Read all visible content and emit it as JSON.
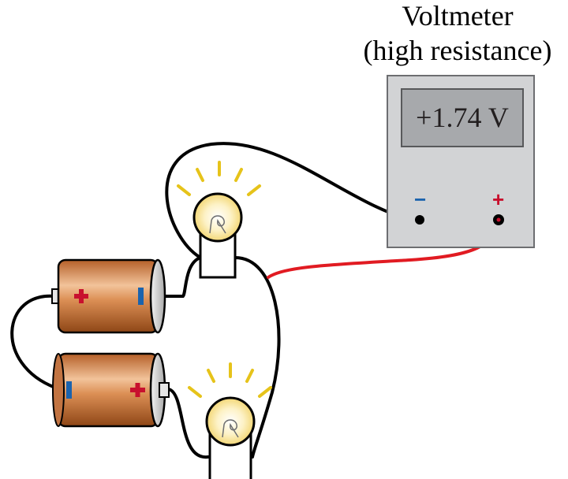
{
  "meter": {
    "title_line1": "Voltmeter",
    "title_line2": "(high resistance)",
    "reading": "+1.74 V",
    "negative_label": "−",
    "positive_label": "+"
  },
  "colors": {
    "negative": "#1b63ad",
    "positive": "#c8102e",
    "red_lead": "#e11b22",
    "black_lead": "#000000",
    "bulb_rays": "#e6c31a",
    "battery_copper": "#c9773c"
  },
  "icons": [
    "battery-cell",
    "light-bulb",
    "voltmeter"
  ]
}
